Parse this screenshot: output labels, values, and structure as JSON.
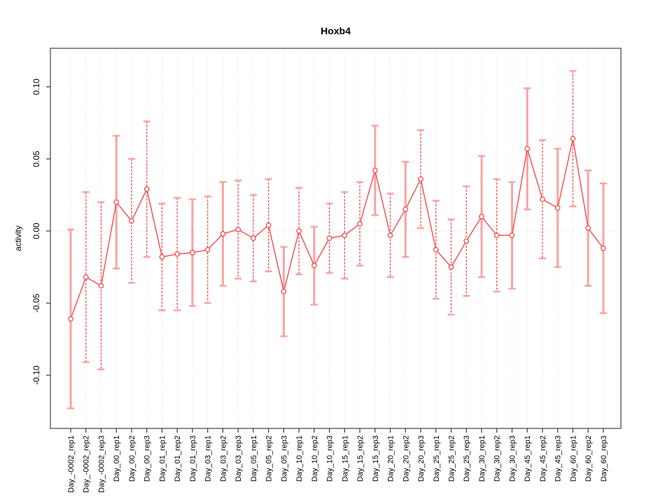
{
  "title": "Hoxb4",
  "chart_data": {
    "type": "line",
    "title": "Hoxb4",
    "xlabel": "",
    "ylabel": "activity",
    "ylim": [
      -0.135,
      0.125
    ],
    "y_ticks": [
      0.1,
      0.05,
      0.0,
      -0.05,
      -0.1
    ],
    "y_tick_labels": [
      "0.10",
      "0.05",
      "0.00",
      "-0.05",
      "-0.10"
    ],
    "grid": "vertical-dotted-per-category, dotted zero line",
    "legend_position": "none",
    "marker": "open-circle",
    "categories": [
      "Day_-0002_rep1",
      "Day_-0002_rep2",
      "Day_-0002_rep3",
      "Day_00_rep1",
      "Day_00_rep2",
      "Day_00_rep3",
      "Day_01_rep1",
      "Day_01_rep2",
      "Day_01_rep3",
      "Day_03_rep1",
      "Day_03_rep2",
      "Day_03_rep3",
      "Day_05_rep1",
      "Day_05_rep2",
      "Day_05_rep3",
      "Day_10_rep1",
      "Day_10_rep2",
      "Day_10_rep3",
      "Day_15_rep1",
      "Day_15_rep2",
      "Day_15_rep3",
      "Day_20_rep1",
      "Day_20_rep2",
      "Day_20_rep3",
      "Day_25_rep1",
      "Day_25_rep2",
      "Day_25_rep3",
      "Day_30_rep1",
      "Day_30_rep2",
      "Day_30_rep3",
      "Day_45_rep1",
      "Day_45_rep2",
      "Day_45_rep3",
      "Day_60_rep1",
      "Day_60_rep2",
      "Day_60_rep3"
    ],
    "series": [
      {
        "name": "activity",
        "values": [
          -0.061,
          -0.032,
          -0.038,
          0.02,
          0.007,
          0.029,
          -0.018,
          -0.016,
          -0.015,
          -0.013,
          -0.002,
          0.001,
          -0.005,
          0.004,
          -0.042,
          0.0,
          -0.024,
          -0.005,
          -0.003,
          0.005,
          0.042,
          -0.003,
          0.015,
          0.036,
          -0.013,
          -0.025,
          -0.007,
          0.01,
          -0.003,
          -0.003,
          0.057,
          0.022,
          0.016,
          0.064,
          0.002,
          -0.012
        ],
        "errors": [
          0.062,
          0.059,
          0.058,
          0.046,
          0.043,
          0.047,
          0.037,
          0.039,
          0.037,
          0.037,
          0.036,
          0.034,
          0.03,
          0.032,
          0.031,
          0.03,
          0.027,
          0.024,
          0.03,
          0.029,
          0.031,
          0.029,
          0.033,
          0.034,
          0.034,
          0.033,
          0.038,
          0.042,
          0.039,
          0.037,
          0.042,
          0.041,
          0.041,
          0.047,
          0.04,
          0.045
        ],
        "error_bar_styles": [
          "solid",
          "dashed",
          "dashed",
          "solid",
          "dashed",
          "dashed",
          "dashed",
          "dashed",
          "solid",
          "dashed",
          "solid",
          "dashed",
          "dashed",
          "dashed",
          "solid",
          "dashed",
          "solid",
          "dashed",
          "dashed",
          "dashed",
          "solid",
          "dashed",
          "solid",
          "dashed",
          "dashed",
          "dashed",
          "dashed",
          "solid",
          "dashed",
          "solid",
          "solid",
          "dashed",
          "solid",
          "dashed",
          "solid",
          "solid"
        ]
      }
    ],
    "colors": {
      "line": "#f14b4b",
      "marker": "#f14b4b",
      "error_bar_solid": "#f9a3a3",
      "error_bar_dashed": "#f14b4b",
      "error_cap": "#f9a3a3",
      "grid": "#d9d9d9",
      "zero_line": "#d9d9d9",
      "plot_border": "#666666",
      "tick": "#333333",
      "text": "#000000",
      "background": "#ffffff"
    }
  }
}
